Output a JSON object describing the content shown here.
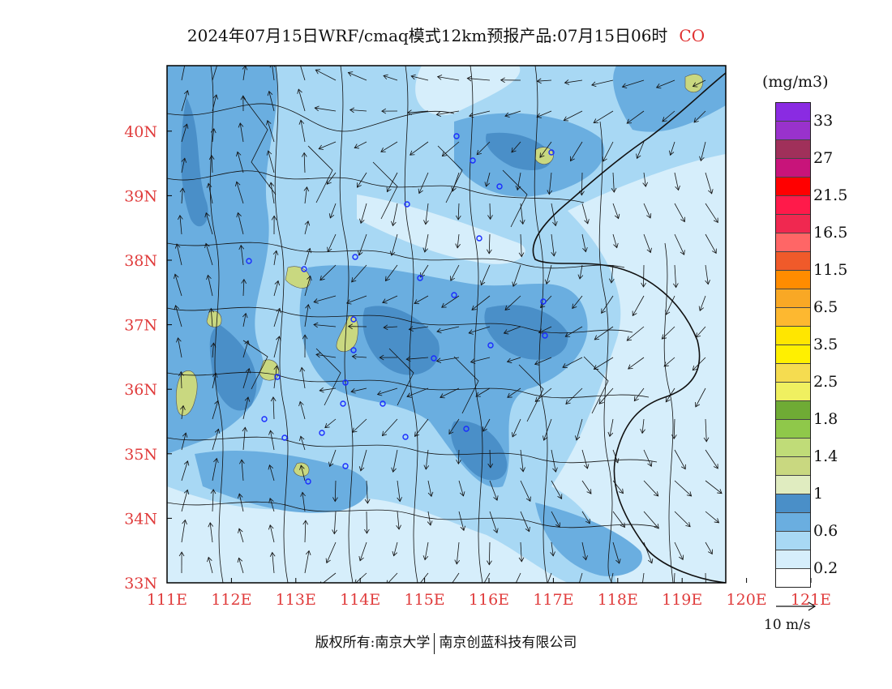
{
  "title": {
    "text": "2024年07月15日WRF/cmaq模式12km预报产品:07月15日06时",
    "species": "CO"
  },
  "map": {
    "lon_labels": [
      "111E",
      "112E",
      "113E",
      "114E",
      "115E",
      "116E",
      "117E",
      "118E",
      "119E",
      "120E",
      "121E"
    ],
    "lat_labels": [
      "33N",
      "34N",
      "35N",
      "36N",
      "37N",
      "38N",
      "39N",
      "40N"
    ],
    "axis_label_color": "#e03c3c"
  },
  "legend": {
    "units": "(mg/m3)",
    "colors": [
      "#8a2be2",
      "#9932cc",
      "#a0305a",
      "#c8147a",
      "#ff0000",
      "#ff1a4a",
      "#f02850",
      "#ff6666",
      "#f05a2a",
      "#ff8c00",
      "#f9a825",
      "#fdb830",
      "#ffe600",
      "#fff000",
      "#f5dc50",
      "#f0f060",
      "#6fab35",
      "#8fc84a",
      "#c0dc78",
      "#c9d880",
      "#e0ecc0",
      "#4a8fc8",
      "#6aaee0",
      "#a8d8f4",
      "#d6eefb",
      "#ffffff"
    ],
    "labels": [
      "33",
      "27",
      "21.5",
      "16.5",
      "11.5",
      "6.5",
      "3.5",
      "2.5",
      "1.8",
      "1.4",
      "1",
      "0.6",
      "0.2"
    ]
  },
  "wind_reference": {
    "label": "10 m/s"
  },
  "footer": {
    "left": "版权所有:南京大学",
    "right": "南京创蓝科技有限公司"
  }
}
